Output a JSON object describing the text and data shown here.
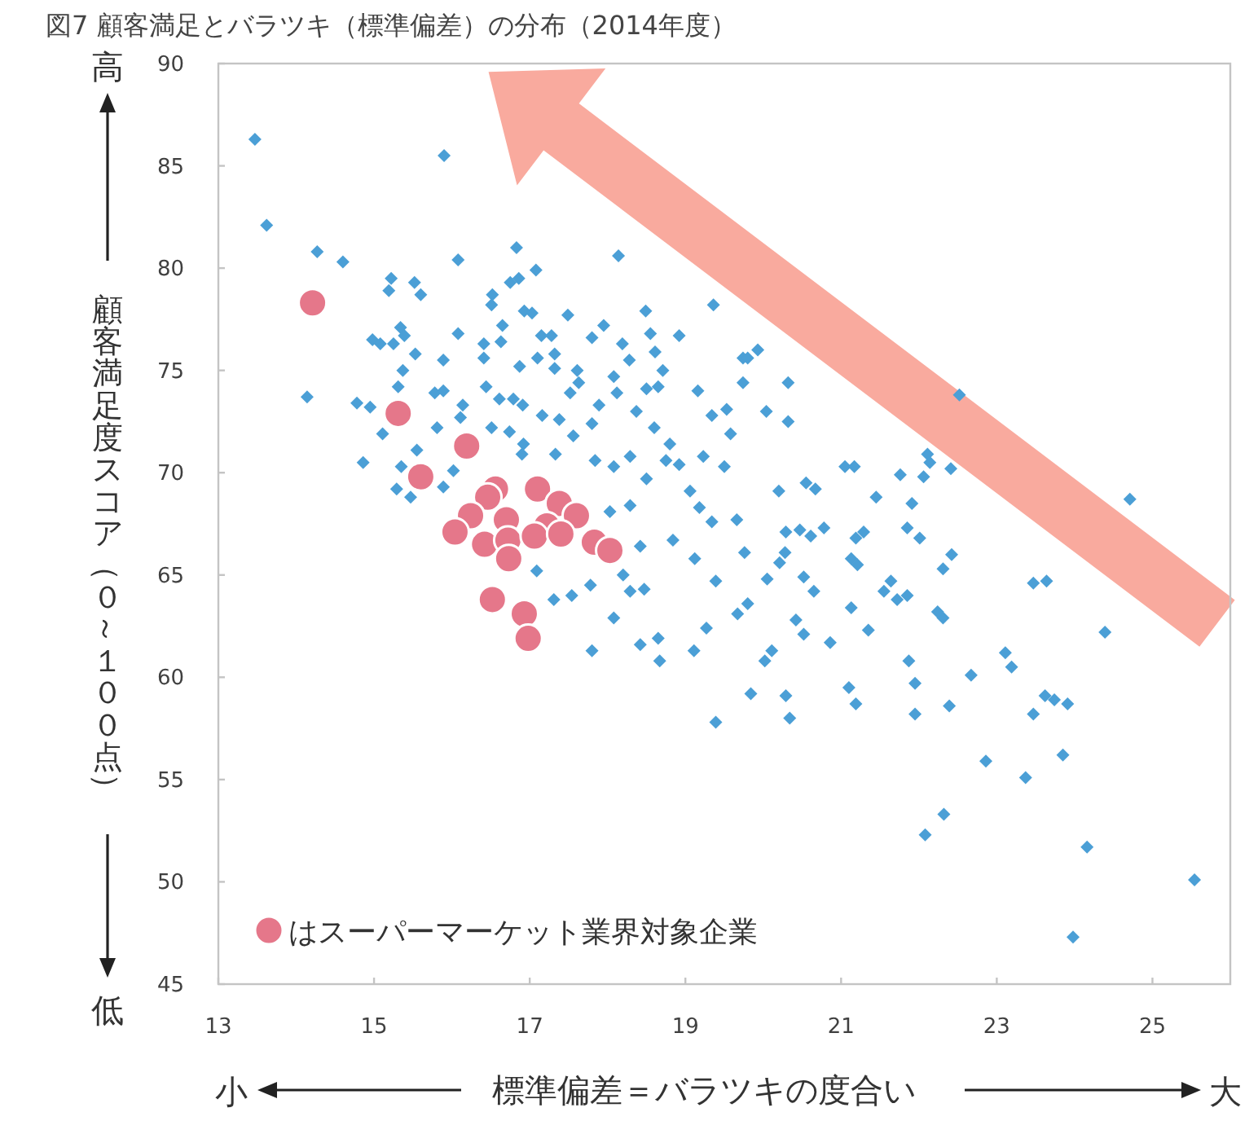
{
  "chart_data": {
    "type": "scatter",
    "title": "図7 顧客満足とバラツキ（標準偏差）の分布（2014年度）",
    "xlabel": "標準偏差＝バラツキの度合い",
    "ylabel": "顧客満足度スコア（０～１００点）",
    "annotations": [
      "高",
      "低",
      "小",
      "大"
    ],
    "xlim": [
      13,
      26
    ],
    "ylim": [
      45,
      90
    ],
    "xticks": [
      13,
      15,
      17,
      19,
      21,
      23,
      25
    ],
    "yticks": [
      45,
      50,
      55,
      60,
      65,
      70,
      75,
      80,
      85,
      90
    ],
    "legend": "bottom left",
    "series": [
      {
        "color": "#4b9fd6",
        "marker": "diamond",
        "x": [
          13.47,
          15.9,
          13.62,
          14.27,
          14.6,
          16.08,
          16.83,
          14.14,
          14.78,
          14.86,
          15.22,
          15.52,
          15.6,
          15.19,
          16.52,
          16.51,
          17.08,
          18.14,
          16.75,
          16.86,
          16.93,
          17.03,
          17.49,
          18.49,
          19.36,
          14.98,
          15.08,
          15.25,
          15.34,
          15.39,
          15.53,
          16.08,
          16.65,
          16.41,
          16.63,
          17.15,
          17.28,
          17.32,
          17.8,
          17.95,
          18.19,
          18.55,
          18.92,
          18.61,
          18.28,
          15.89,
          16.41,
          16.87,
          17.1,
          17.32,
          17.61,
          18.08,
          18.71,
          19.74,
          15.37,
          15.31,
          14.95,
          15.11,
          15.78,
          15.89,
          16.14,
          16.44,
          16.79,
          16.91,
          16.61,
          17.16,
          17.38,
          17.63,
          17.52,
          17.8,
          18.12,
          17.89,
          18.5,
          18.65,
          19.16,
          18.37,
          18.6,
          18.8,
          19.34,
          19.58,
          15.81,
          16.11,
          16.51,
          16.74,
          16.92,
          16.9,
          17.33,
          17.56,
          17.84,
          18.08,
          18.29,
          18.5,
          18.75,
          18.92,
          19.06,
          19.23,
          19.5,
          19.66,
          18.84,
          19.12,
          19.39,
          19.67,
          19.27,
          19.11,
          18.65,
          18.67,
          18.42,
          17.8,
          18.08,
          18.29,
          18.47,
          18.42,
          17.31,
          17.54,
          17.09,
          17.78,
          18.2,
          15.29,
          15.47,
          15.89,
          16.02,
          15.35,
          15.55,
          18.29,
          18.03,
          19.18,
          19.34,
          19.8,
          19.93,
          20.32,
          19.74,
          19.53,
          20.04,
          20.32,
          22.52,
          22.11,
          22.14,
          22.41,
          21.76,
          22.06,
          21.05,
          21.17,
          20.55,
          20.67,
          20.2,
          21.45,
          21.91,
          20.47,
          20.61,
          20.78,
          20.29,
          21.19,
          21.29,
          21.85,
          22.01,
          22.42,
          22.31,
          21.64,
          21.55,
          21.85,
          21.72,
          21.13,
          21.35,
          20.86,
          21.13,
          21.21,
          20.52,
          20.65,
          20.28,
          20.21,
          20.05,
          19.76,
          19.8,
          20.42,
          20.52,
          20.11,
          20.02,
          20.29,
          19.84,
          21.1,
          21.87,
          21.95,
          22.31,
          22.24,
          22.67,
          24.71,
          23.47,
          23.64,
          24.39,
          23.11,
          23.19,
          21.95,
          22.39,
          23.62,
          23.74,
          23.91,
          23.47,
          23.85,
          23.37,
          22.86,
          22.32,
          22.08,
          24.16,
          25.54,
          23.98,
          21.19,
          20.34,
          19.39
        ],
        "values": [
          86.3,
          85.5,
          82.1,
          80.8,
          80.3,
          80.4,
          81.0,
          73.7,
          73.4,
          70.5,
          79.5,
          79.3,
          78.7,
          78.9,
          78.7,
          78.2,
          79.9,
          80.6,
          79.3,
          79.5,
          77.9,
          77.8,
          77.7,
          77.9,
          78.2,
          76.5,
          76.3,
          76.3,
          77.1,
          76.7,
          75.8,
          76.8,
          77.2,
          76.3,
          76.4,
          76.7,
          76.7,
          75.8,
          76.6,
          77.2,
          76.3,
          76.8,
          76.7,
          75.9,
          75.5,
          75.5,
          75.6,
          75.2,
          75.6,
          75.1,
          75.0,
          74.7,
          75.0,
          75.6,
          75.0,
          74.2,
          73.2,
          71.9,
          73.9,
          74.0,
          73.3,
          74.2,
          73.6,
          73.3,
          73.6,
          72.8,
          72.6,
          74.4,
          73.9,
          72.4,
          73.9,
          73.3,
          74.1,
          74.2,
          74.0,
          73.0,
          72.2,
          71.4,
          72.8,
          71.9,
          72.2,
          72.7,
          72.2,
          72.0,
          71.4,
          70.9,
          70.9,
          71.8,
          70.6,
          70.3,
          70.8,
          69.7,
          70.6,
          70.4,
          69.1,
          70.8,
          70.3,
          67.7,
          66.7,
          65.8,
          64.7,
          63.1,
          62.4,
          61.3,
          61.9,
          60.8,
          61.6,
          61.3,
          62.9,
          64.2,
          64.3,
          66.4,
          63.8,
          64.0,
          65.2,
          64.5,
          65.0,
          69.2,
          68.8,
          69.3,
          70.1,
          70.3,
          71.1,
          68.4,
          68.1,
          68.3,
          67.6,
          75.6,
          76.0,
          74.4,
          74.4,
          73.1,
          73.0,
          72.5,
          73.8,
          70.9,
          70.5,
          70.2,
          69.9,
          69.8,
          70.3,
          70.3,
          69.5,
          69.2,
          69.1,
          68.8,
          68.5,
          67.2,
          66.9,
          67.3,
          67.1,
          66.8,
          67.1,
          67.3,
          66.8,
          66.0,
          65.3,
          64.7,
          64.2,
          64.0,
          63.8,
          63.4,
          62.3,
          61.7,
          65.8,
          65.5,
          64.9,
          64.2,
          66.1,
          65.6,
          64.8,
          66.1,
          63.6,
          62.8,
          62.1,
          61.3,
          60.8,
          59.1,
          59.2,
          59.5,
          60.8,
          59.7,
          62.9,
          63.2,
          60.1,
          68.7,
          64.6,
          64.7,
          62.2,
          61.2,
          60.5,
          58.2,
          58.6,
          59.1,
          58.9,
          58.7,
          58.2,
          56.2,
          55.1,
          55.9,
          53.3,
          52.3,
          51.7,
          50.1,
          47.3,
          58.7,
          58.0,
          57.8
        ]
      },
      {
        "name": "はスーパーマーケット業界対象企業",
        "color": "#e5778a",
        "marker": "circle",
        "x": [
          14.21,
          15.31,
          16.19,
          15.6,
          17.1,
          16.56,
          16.46,
          17.38,
          17.6,
          16.24,
          16.7,
          17.22,
          16.04,
          16.42,
          16.72,
          17.06,
          17.4,
          17.83,
          18.03,
          16.73,
          16.52,
          16.93,
          16.98
        ],
        "values": [
          78.3,
          72.9,
          71.3,
          69.8,
          69.2,
          69.2,
          68.8,
          68.5,
          67.9,
          67.9,
          67.7,
          67.4,
          67.1,
          66.5,
          66.7,
          66.9,
          67.0,
          66.6,
          66.2,
          65.8,
          63.8,
          63.1,
          61.9
        ]
      }
    ]
  }
}
